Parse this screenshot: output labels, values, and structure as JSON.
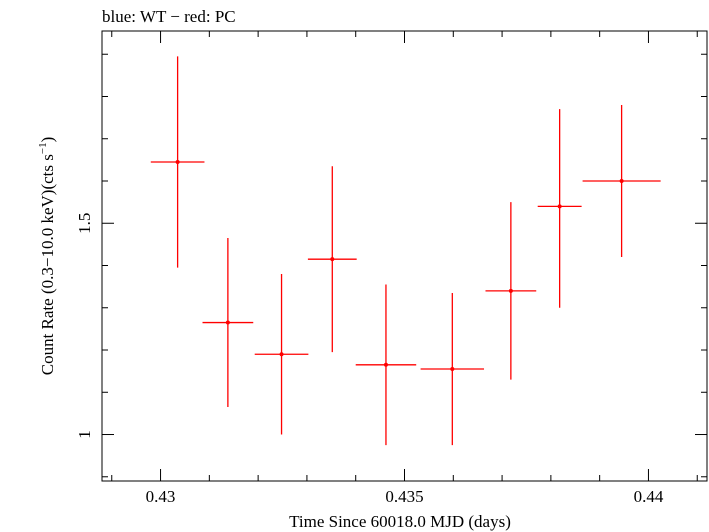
{
  "chart_data": {
    "type": "scatter",
    "title": "blue: WT − red: PC",
    "xlabel": "Time Since 60018.0 MJD (days)",
    "ylabel_main": "Count Rate (0.3−10.0 keV)(cts s",
    "ylabel_sup": "−1",
    "ylabel_close": ")",
    "xlim": [
      0.4288,
      0.4412
    ],
    "ylim": [
      0.89,
      1.955
    ],
    "x_ticks_major": [
      0.43,
      0.435,
      0.44
    ],
    "x_tick_labels": [
      "0.43",
      "0.435",
      "0.44"
    ],
    "y_ticks_major": [
      1.0,
      1.5
    ],
    "y_tick_labels": [
      "1",
      "1.5"
    ],
    "grid": false,
    "legend": "none",
    "series": [
      {
        "color": "#ff0000",
        "points": [
          {
            "x": 0.43035,
            "xerr": 0.00055,
            "y": 1.645,
            "yerr_low": 0.25,
            "yerr_high": 0.25
          },
          {
            "x": 0.43138,
            "xerr": 0.00052,
            "y": 1.265,
            "yerr_low": 0.2,
            "yerr_high": 0.2
          },
          {
            "x": 0.43248,
            "xerr": 0.00055,
            "y": 1.19,
            "yerr_low": 0.19,
            "yerr_high": 0.19
          },
          {
            "x": 0.43352,
            "xerr": 0.0005,
            "y": 1.415,
            "yerr_low": 0.22,
            "yerr_high": 0.22
          },
          {
            "x": 0.43462,
            "xerr": 0.00062,
            "y": 1.165,
            "yerr_low": 0.19,
            "yerr_high": 0.19
          },
          {
            "x": 0.43598,
            "xerr": 0.00065,
            "y": 1.155,
            "yerr_low": 0.18,
            "yerr_high": 0.18
          },
          {
            "x": 0.43718,
            "xerr": 0.00052,
            "y": 1.34,
            "yerr_low": 0.21,
            "yerr_high": 0.21
          },
          {
            "x": 0.43818,
            "xerr": 0.00045,
            "y": 1.54,
            "yerr_low": 0.24,
            "yerr_high": 0.23
          },
          {
            "x": 0.43945,
            "xerr": 0.0008,
            "y": 1.6,
            "yerr_low": 0.18,
            "yerr_high": 0.18
          }
        ]
      }
    ]
  }
}
